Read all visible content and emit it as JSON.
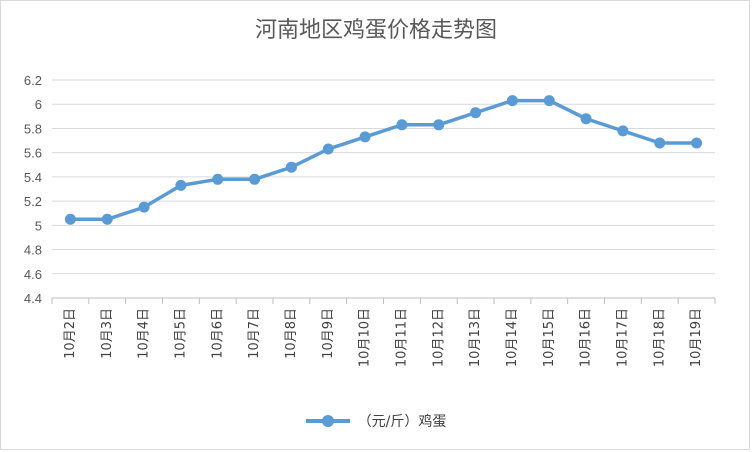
{
  "chart_data": {
    "type": "line",
    "title": "河南地区鸡蛋价格走势图",
    "categories": [
      "10月2日",
      "10月3日",
      "10月4日",
      "10月5日",
      "10月6日",
      "10月7日",
      "10月8日",
      "10月9日",
      "10月10日",
      "10月11日",
      "10月12日",
      "10月13日",
      "10月14日",
      "10月15日",
      "10月16日",
      "10月17日",
      "10月18日",
      "10月19日"
    ],
    "series": [
      {
        "name": "（元/斤）鸡蛋",
        "values": [
          5.05,
          5.05,
          5.15,
          5.33,
          5.38,
          5.38,
          5.48,
          5.63,
          5.73,
          5.83,
          5.83,
          5.93,
          6.03,
          6.03,
          5.88,
          5.78,
          5.68,
          5.68
        ],
        "color": "#5b9bd5"
      }
    ],
    "ylim": [
      4.4,
      6.2
    ],
    "yticks": [
      4.4,
      4.6,
      4.8,
      5,
      5.2,
      5.4,
      5.6,
      5.8,
      6,
      6.2
    ],
    "grid": true,
    "legend_position": "bottom"
  }
}
